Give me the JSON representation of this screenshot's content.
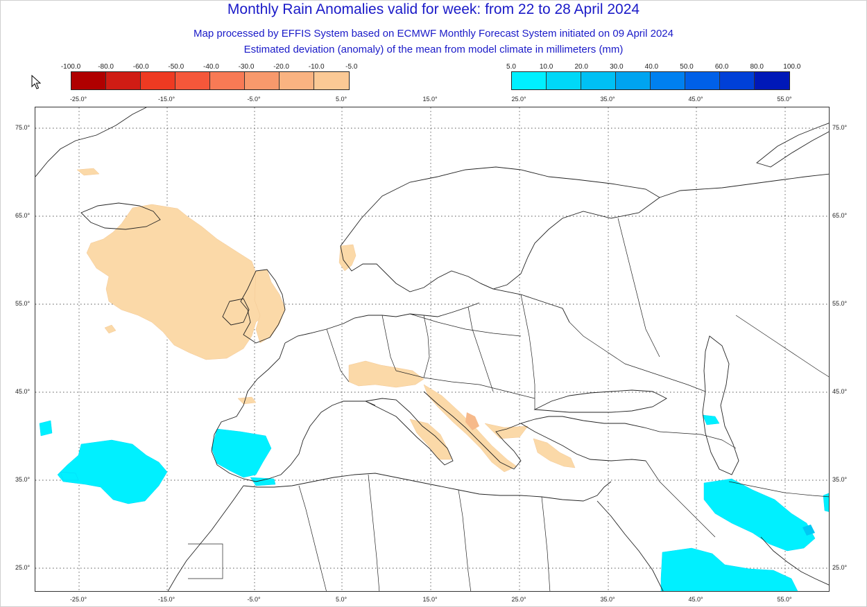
{
  "title": "Monthly Rain Anomalies valid for week: from 22 to 28 April 2024",
  "subtitle1": "Map processed by EFFIS System based on ECMWF Monthly Forecast System initiated on 09 April 2024",
  "subtitle2": "Estimated deviation (anomaly) of the mean from model climate in millimeters (mm)",
  "legend_negative": {
    "labels": [
      "-100.0",
      "-80.0",
      "-60.0",
      "-50.0",
      "-40.0",
      "-30.0",
      "-20.0",
      "-10.0",
      "-5.0"
    ],
    "colors": [
      "#b00000",
      "#d01c14",
      "#ee3a22",
      "#f5573a",
      "#f87a55",
      "#f8996c",
      "#fab381",
      "#fbc995"
    ]
  },
  "legend_positive": {
    "labels": [
      "5.0",
      "10.0",
      "20.0",
      "30.0",
      "40.0",
      "50.0",
      "60.0",
      "80.0",
      "100.0"
    ],
    "colors": [
      "#00f0ff",
      "#00d8f8",
      "#00c0f4",
      "#00a4f0",
      "#0080f0",
      "#0060e8",
      "#0040d8",
      "#0018b8"
    ]
  },
  "axes": {
    "lon_labels": [
      "-25.0°",
      "-15.0°",
      "-5.0°",
      "5.0°",
      "15.0°",
      "25.0°",
      "35.0°",
      "45.0°",
      "55.0°"
    ],
    "lat_labels": [
      "75.0°",
      "65.0°",
      "55.0°",
      "45.0°",
      "35.0°",
      "25.0°"
    ]
  },
  "colors": {
    "dry_anomaly": "#fbd9a8",
    "dry_anomaly_strong": "#f6b98a",
    "wet_anomaly": "#00f0ff",
    "wet_anomaly_strong": "#00c8f4",
    "title": "#1a1ac8"
  }
}
